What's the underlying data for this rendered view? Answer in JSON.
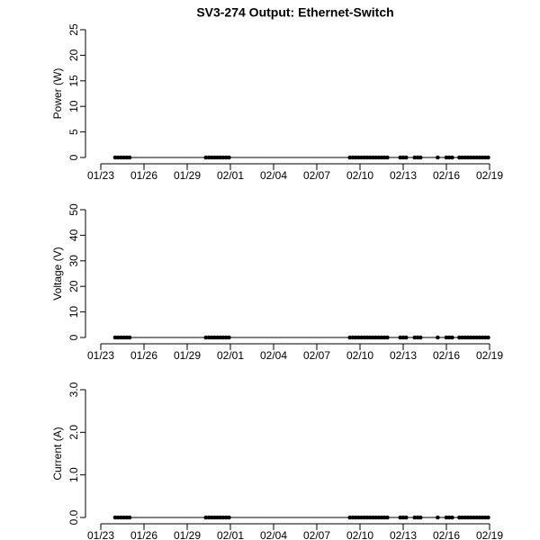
{
  "title": "SV3-274 Output: Ethernet-Switch",
  "chart_data": [
    {
      "type": "line",
      "ylabel": "Power (W)",
      "color": "#000000",
      "x": [
        1.0,
        1.2,
        1.4,
        1.6,
        1.8,
        2.0,
        7.3,
        7.5,
        7.7,
        7.9,
        8.1,
        8.3,
        8.5,
        8.7,
        8.9,
        17.3,
        17.5,
        17.7,
        17.9,
        18.1,
        18.3,
        18.5,
        18.7,
        18.9,
        19.1,
        19.3,
        19.5,
        19.7,
        19.9,
        20.8,
        21.0,
        21.2,
        21.8,
        22.0,
        22.2,
        23.4,
        24.0,
        24.2,
        24.4,
        24.9,
        25.1,
        25.3,
        25.5,
        25.7,
        25.9,
        26.1,
        26.3,
        26.5,
        26.7,
        26.9
      ],
      "values": [
        0,
        0,
        0,
        0,
        0,
        0,
        0,
        0,
        0,
        0,
        0,
        0,
        0,
        0,
        0,
        0,
        0,
        0,
        0,
        0,
        0,
        0,
        0,
        0,
        0,
        0,
        0,
        0,
        0,
        0,
        0,
        0,
        0,
        0,
        0,
        0,
        0,
        0,
        0,
        0,
        0,
        0,
        0,
        0,
        0,
        0,
        0,
        0,
        0,
        0
      ],
      "xlim": [
        0,
        27
      ],
      "ylim": [
        0,
        25
      ],
      "xticks": [
        {
          "value": 0,
          "label": "01/23"
        },
        {
          "value": 3,
          "label": "01/26"
        },
        {
          "value": 6,
          "label": "01/29"
        },
        {
          "value": 9,
          "label": "02/01"
        },
        {
          "value": 12,
          "label": "02/04"
        },
        {
          "value": 15,
          "label": "02/07"
        },
        {
          "value": 18,
          "label": "02/10"
        },
        {
          "value": 21,
          "label": "02/13"
        },
        {
          "value": 24,
          "label": "02/16"
        },
        {
          "value": 27,
          "label": "02/19"
        }
      ],
      "yticks": [
        0,
        5,
        10,
        15,
        20,
        25
      ]
    },
    {
      "type": "line",
      "ylabel": "Voltage (V)",
      "color": "#000000",
      "x": [
        1.0,
        1.2,
        1.4,
        1.6,
        1.8,
        2.0,
        7.3,
        7.5,
        7.7,
        7.9,
        8.1,
        8.3,
        8.5,
        8.7,
        8.9,
        17.3,
        17.5,
        17.7,
        17.9,
        18.1,
        18.3,
        18.5,
        18.7,
        18.9,
        19.1,
        19.3,
        19.5,
        19.7,
        19.9,
        20.8,
        21.0,
        21.2,
        21.8,
        22.0,
        22.2,
        23.4,
        24.0,
        24.2,
        24.4,
        24.9,
        25.1,
        25.3,
        25.5,
        25.7,
        25.9,
        26.1,
        26.3,
        26.5,
        26.7,
        26.9
      ],
      "values": [
        0,
        0,
        0,
        0,
        0,
        0,
        0,
        0,
        0,
        0,
        0,
        0,
        0,
        0,
        0,
        0,
        0,
        0,
        0,
        0,
        0,
        0,
        0,
        0,
        0,
        0,
        0,
        0,
        0,
        0,
        0,
        0,
        0,
        0,
        0,
        0,
        0,
        0,
        0,
        0,
        0,
        0,
        0,
        0,
        0,
        0,
        0,
        0,
        0,
        0
      ],
      "xlim": [
        0,
        27
      ],
      "ylim": [
        0,
        50
      ],
      "xticks": [
        {
          "value": 0,
          "label": "01/23"
        },
        {
          "value": 3,
          "label": "01/26"
        },
        {
          "value": 6,
          "label": "01/29"
        },
        {
          "value": 9,
          "label": "02/01"
        },
        {
          "value": 12,
          "label": "02/04"
        },
        {
          "value": 15,
          "label": "02/07"
        },
        {
          "value": 18,
          "label": "02/10"
        },
        {
          "value": 21,
          "label": "02/13"
        },
        {
          "value": 24,
          "label": "02/16"
        },
        {
          "value": 27,
          "label": "02/19"
        }
      ],
      "yticks": [
        0,
        10,
        20,
        30,
        40,
        50
      ]
    },
    {
      "type": "line",
      "ylabel": "Current (A)",
      "color": "#000000",
      "x": [
        1.0,
        1.2,
        1.4,
        1.6,
        1.8,
        2.0,
        7.3,
        7.5,
        7.7,
        7.9,
        8.1,
        8.3,
        8.5,
        8.7,
        8.9,
        17.3,
        17.5,
        17.7,
        17.9,
        18.1,
        18.3,
        18.5,
        18.7,
        18.9,
        19.1,
        19.3,
        19.5,
        19.7,
        19.9,
        20.8,
        21.0,
        21.2,
        21.8,
        22.0,
        22.2,
        23.4,
        24.0,
        24.2,
        24.4,
        24.9,
        25.1,
        25.3,
        25.5,
        25.7,
        25.9,
        26.1,
        26.3,
        26.5,
        26.7,
        26.9
      ],
      "values": [
        0,
        0,
        0,
        0,
        0,
        0,
        0,
        0,
        0,
        0,
        0,
        0,
        0,
        0,
        0,
        0,
        0,
        0,
        0,
        0,
        0,
        0,
        0,
        0,
        0,
        0,
        0,
        0,
        0,
        0,
        0,
        0,
        0,
        0,
        0,
        0,
        0,
        0,
        0,
        0,
        0,
        0,
        0,
        0,
        0,
        0,
        0,
        0,
        0,
        0
      ],
      "xlim": [
        0,
        27
      ],
      "ylim": [
        0,
        3
      ],
      "xticks": [
        {
          "value": 0,
          "label": "01/23"
        },
        {
          "value": 3,
          "label": "01/26"
        },
        {
          "value": 6,
          "label": "01/29"
        },
        {
          "value": 9,
          "label": "02/01"
        },
        {
          "value": 12,
          "label": "02/04"
        },
        {
          "value": 15,
          "label": "02/07"
        },
        {
          "value": 18,
          "label": "02/10"
        },
        {
          "value": 21,
          "label": "02/13"
        },
        {
          "value": 24,
          "label": "02/16"
        },
        {
          "value": 27,
          "label": "02/19"
        }
      ],
      "yticks": [
        {
          "value": 0,
          "label": "0.0"
        },
        {
          "value": 1,
          "label": "1.0"
        },
        {
          "value": 2,
          "label": "2.0"
        },
        {
          "value": 3,
          "label": "3.0"
        }
      ]
    }
  ]
}
